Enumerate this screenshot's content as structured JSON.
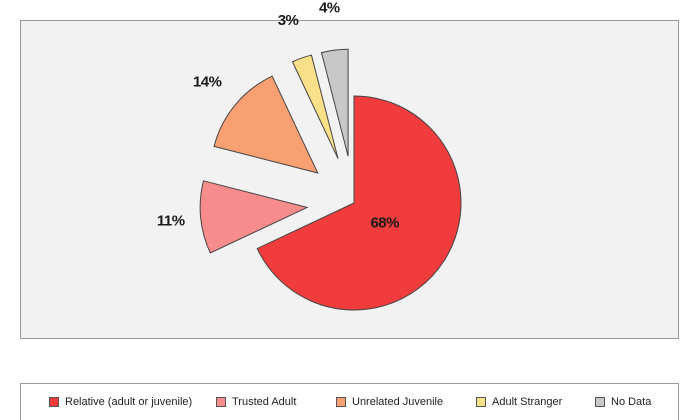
{
  "chart_data": {
    "type": "pie",
    "title": "",
    "slices": [
      {
        "name": "Relative (adult or juvenile)",
        "value": 68,
        "label": "68%",
        "color": "#f03c3c"
      },
      {
        "name": "Trusted Adult",
        "value": 11,
        "label": "11%",
        "color": "#f78c8c"
      },
      {
        "name": "Unrelated Juvenile",
        "value": 14,
        "label": "14%",
        "color": "#f9a072"
      },
      {
        "name": "Adult Stranger",
        "value": 3,
        "label": "3%",
        "color": "#fbe08a"
      },
      {
        "name": "No Data",
        "value": 4,
        "label": "4%",
        "color": "#c8c8c8"
      }
    ],
    "exploded": true,
    "legend_position": "bottom"
  }
}
